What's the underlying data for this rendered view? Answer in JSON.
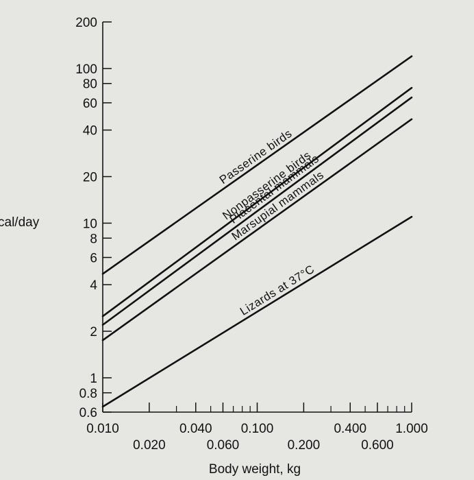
{
  "chart_data": {
    "type": "line",
    "xlabel": "Body weight, kg",
    "ylabel": "cal/day",
    "x_scale": "log",
    "y_scale": "log",
    "xlim": [
      0.01,
      1.0
    ],
    "ylim": [
      0.6,
      200
    ],
    "grid": false,
    "x_ticks": [
      {
        "value": 0.01,
        "label": "0.010"
      },
      {
        "value": 0.02,
        "label": "0.020"
      },
      {
        "value": 0.04,
        "label": "0.040"
      },
      {
        "value": 0.06,
        "label": "0.060"
      },
      {
        "value": 0.1,
        "label": "0.100"
      },
      {
        "value": 0.2,
        "label": "0.200"
      },
      {
        "value": 0.4,
        "label": "0.400"
      },
      {
        "value": 0.6,
        "label": "0.600"
      },
      {
        "value": 1.0,
        "label": "1.000"
      }
    ],
    "x_minor_ticks": [
      0.03,
      0.05,
      0.07,
      0.08,
      0.09,
      0.3,
      0.5,
      0.7,
      0.8,
      0.9
    ],
    "y_ticks": [
      {
        "value": 0.6,
        "label": "0.6"
      },
      {
        "value": 0.8,
        "label": "0.8"
      },
      {
        "value": 1,
        "label": "1"
      },
      {
        "value": 2,
        "label": "2"
      },
      {
        "value": 4,
        "label": "4"
      },
      {
        "value": 6,
        "label": "6"
      },
      {
        "value": 8,
        "label": "8"
      },
      {
        "value": 10,
        "label": "10"
      },
      {
        "value": 20,
        "label": "20"
      },
      {
        "value": 40,
        "label": "40"
      },
      {
        "value": 60,
        "label": "60"
      },
      {
        "value": 80,
        "label": "80"
      },
      {
        "value": 100,
        "label": "100"
      },
      {
        "value": 200,
        "label": "200"
      }
    ],
    "series": [
      {
        "name": "Passerine birds",
        "x": [
          0.01,
          1.0
        ],
        "y": [
          4.7,
          120
        ]
      },
      {
        "name": "Nonpasserine birds",
        "x": [
          0.01,
          1.0
        ],
        "y": [
          2.5,
          75
        ]
      },
      {
        "name": "Placental mammals",
        "x": [
          0.01,
          1.0
        ],
        "y": [
          2.2,
          65
        ]
      },
      {
        "name": "Marsupial mammals",
        "x": [
          0.01,
          1.0
        ],
        "y": [
          1.75,
          47
        ]
      },
      {
        "name": "Lizards at 37°C",
        "x": [
          0.01,
          1.0
        ],
        "y": [
          0.65,
          11
        ]
      }
    ],
    "colors": {
      "line": "#111111",
      "background": "#e6e6e3"
    }
  }
}
